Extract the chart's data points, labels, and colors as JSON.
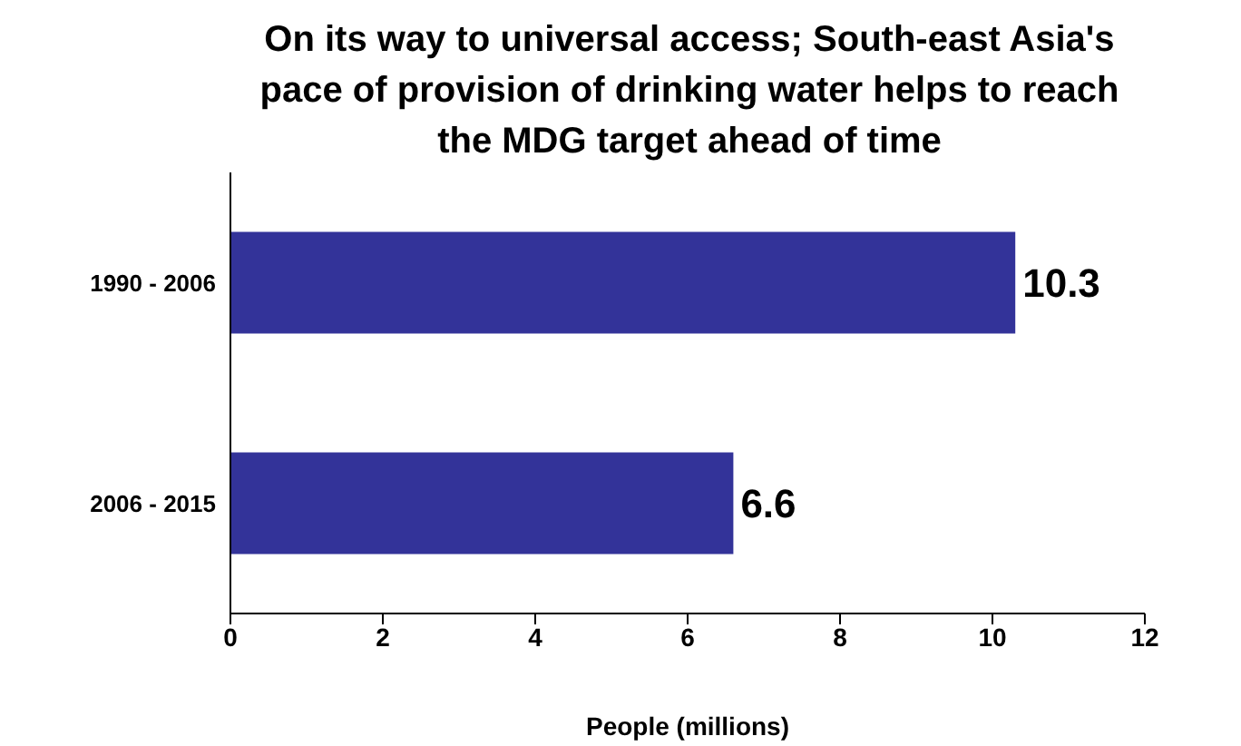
{
  "chart_data": {
    "type": "bar",
    "orientation": "horizontal",
    "title": "On its way to universal access; South-east Asia's pace of provision of drinking water helps to reach the MDG target ahead of time",
    "categories": [
      "1990 - 2006",
      "2006 - 2015"
    ],
    "values": [
      10.3,
      6.6
    ],
    "color": "#333399",
    "xlabel": "People (millions)",
    "xlim": [
      0,
      12
    ],
    "xticks": [
      0,
      2,
      4,
      6,
      8,
      10,
      12
    ],
    "grid": false,
    "data_labels": true
  }
}
